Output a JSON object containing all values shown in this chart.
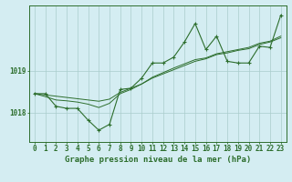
{
  "title": "Graphe pression niveau de la mer (hPa)",
  "background_color": "#d4edf2",
  "grid_color": "#aacccc",
  "line_color": "#2d6e2d",
  "title_fontsize": 6.5,
  "tick_fontsize": 5.5,
  "hours": [
    0,
    1,
    2,
    3,
    4,
    5,
    6,
    7,
    8,
    9,
    10,
    11,
    12,
    13,
    14,
    15,
    16,
    17,
    18,
    19,
    20,
    21,
    22,
    23
  ],
  "pressure_main": [
    1018.45,
    1018.45,
    1018.15,
    1018.1,
    1018.1,
    1017.82,
    1017.58,
    1017.72,
    1018.55,
    1018.58,
    1018.82,
    1019.18,
    1019.18,
    1019.32,
    1019.68,
    1020.12,
    1019.5,
    1019.82,
    1019.22,
    1019.18,
    1019.18,
    1019.58,
    1019.55,
    1020.32
  ],
  "pressure_line2": [
    1018.45,
    1018.38,
    1018.3,
    1018.28,
    1018.25,
    1018.2,
    1018.12,
    1018.22,
    1018.45,
    1018.55,
    1018.68,
    1018.82,
    1018.92,
    1019.02,
    1019.12,
    1019.22,
    1019.28,
    1019.38,
    1019.42,
    1019.48,
    1019.52,
    1019.62,
    1019.68,
    1019.78
  ],
  "pressure_line3": [
    1018.45,
    1018.42,
    1018.39,
    1018.36,
    1018.33,
    1018.3,
    1018.27,
    1018.32,
    1018.48,
    1018.58,
    1018.68,
    1018.84,
    1018.95,
    1019.06,
    1019.16,
    1019.26,
    1019.3,
    1019.4,
    1019.45,
    1019.5,
    1019.55,
    1019.65,
    1019.7,
    1019.82
  ],
  "ylim": [
    1017.3,
    1020.55
  ],
  "yticks": [
    1018.0,
    1019.0
  ],
  "xlim": [
    -0.5,
    23.5
  ]
}
